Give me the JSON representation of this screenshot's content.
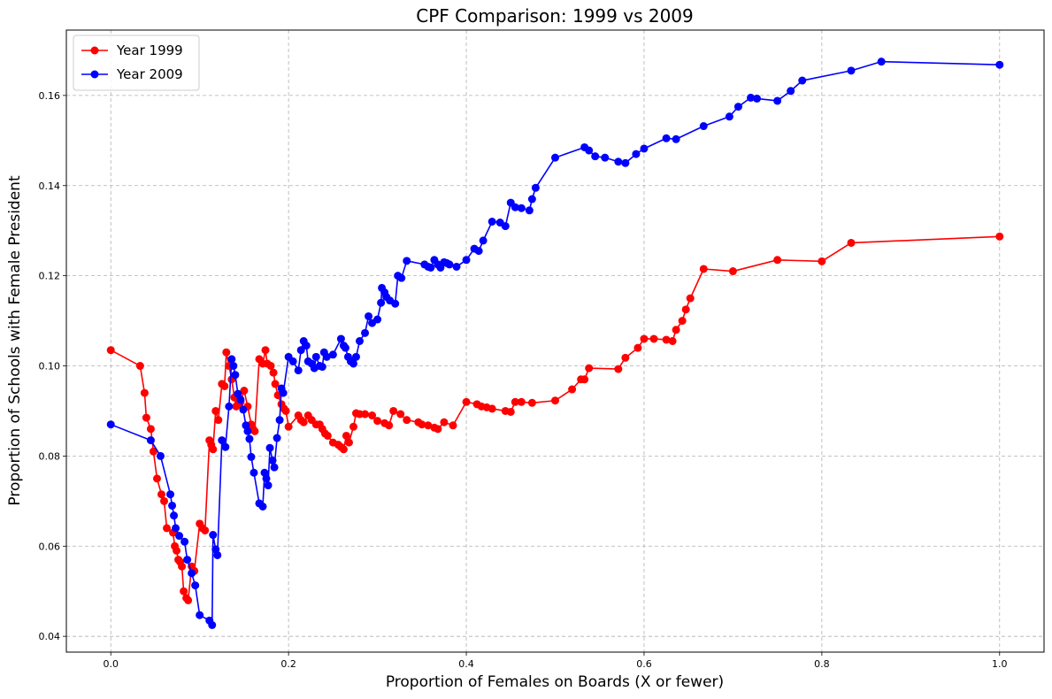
{
  "chart_data": {
    "type": "line",
    "title": "CPF Comparison: 1999 vs 2009",
    "xlabel": "Proportion of Females on Boards (X or fewer)",
    "ylabel": "Proportion of Schools with Female President",
    "xlim": [
      -0.05,
      1.05
    ],
    "ylim": [
      0.0365,
      0.1745
    ],
    "xticks": [
      0.0,
      0.2,
      0.4,
      0.6,
      0.8,
      1.0
    ],
    "xtick_labels": [
      "0.0",
      "0.2",
      "0.4",
      "0.6",
      "0.8",
      "1.0"
    ],
    "yticks": [
      0.04,
      0.06,
      0.08,
      0.1,
      0.12,
      0.14,
      0.16
    ],
    "ytick_labels": [
      "0.04",
      "0.06",
      "0.08",
      "0.10",
      "0.12",
      "0.14",
      "0.16"
    ],
    "grid": true,
    "legend_position": "top-left",
    "series": [
      {
        "name": "Year 1999",
        "color": "#ff0000",
        "marker": "circle",
        "points": [
          [
            0.0,
            0.1035
          ],
          [
            0.033,
            0.1
          ],
          [
            0.038,
            0.094
          ],
          [
            0.04,
            0.0885
          ],
          [
            0.045,
            0.086
          ],
          [
            0.048,
            0.081
          ],
          [
            0.052,
            0.075
          ],
          [
            0.057,
            0.0715
          ],
          [
            0.06,
            0.07
          ],
          [
            0.063,
            0.064
          ],
          [
            0.07,
            0.063
          ],
          [
            0.072,
            0.06
          ],
          [
            0.074,
            0.059
          ],
          [
            0.076,
            0.057
          ],
          [
            0.078,
            0.0565
          ],
          [
            0.08,
            0.0555
          ],
          [
            0.082,
            0.05
          ],
          [
            0.085,
            0.0485
          ],
          [
            0.087,
            0.048
          ],
          [
            0.091,
            0.0555
          ],
          [
            0.094,
            0.0545
          ],
          [
            0.1,
            0.065
          ],
          [
            0.103,
            0.064
          ],
          [
            0.106,
            0.0635
          ],
          [
            0.111,
            0.0835
          ],
          [
            0.113,
            0.0825
          ],
          [
            0.115,
            0.0815
          ],
          [
            0.118,
            0.09
          ],
          [
            0.121,
            0.088
          ],
          [
            0.125,
            0.096
          ],
          [
            0.128,
            0.0955
          ],
          [
            0.13,
            0.103
          ],
          [
            0.133,
            0.1
          ],
          [
            0.136,
            0.097
          ],
          [
            0.139,
            0.093
          ],
          [
            0.141,
            0.091
          ],
          [
            0.143,
            0.0915
          ],
          [
            0.146,
            0.092
          ],
          [
            0.15,
            0.0945
          ],
          [
            0.154,
            0.091
          ],
          [
            0.158,
            0.087
          ],
          [
            0.16,
            0.086
          ],
          [
            0.162,
            0.0855
          ],
          [
            0.167,
            0.1015
          ],
          [
            0.171,
            0.1005
          ],
          [
            0.174,
            0.1035
          ],
          [
            0.176,
            0.1005
          ],
          [
            0.18,
            0.1
          ],
          [
            0.183,
            0.0985
          ],
          [
            0.185,
            0.096
          ],
          [
            0.188,
            0.0935
          ],
          [
            0.192,
            0.0915
          ],
          [
            0.195,
            0.0905
          ],
          [
            0.197,
            0.09
          ],
          [
            0.2,
            0.0865
          ],
          [
            0.211,
            0.089
          ],
          [
            0.214,
            0.088
          ],
          [
            0.217,
            0.0875
          ],
          [
            0.222,
            0.089
          ],
          [
            0.226,
            0.088
          ],
          [
            0.231,
            0.087
          ],
          [
            0.235,
            0.087
          ],
          [
            0.238,
            0.086
          ],
          [
            0.241,
            0.085
          ],
          [
            0.244,
            0.0845
          ],
          [
            0.25,
            0.083
          ],
          [
            0.256,
            0.0825
          ],
          [
            0.259,
            0.082
          ],
          [
            0.262,
            0.0815
          ],
          [
            0.265,
            0.0845
          ],
          [
            0.268,
            0.083
          ],
          [
            0.273,
            0.0865
          ],
          [
            0.276,
            0.0895
          ],
          [
            0.28,
            0.0893
          ],
          [
            0.286,
            0.0893
          ],
          [
            0.294,
            0.089
          ],
          [
            0.3,
            0.0878
          ],
          [
            0.308,
            0.0873
          ],
          [
            0.313,
            0.0868
          ],
          [
            0.318,
            0.09
          ],
          [
            0.326,
            0.0893
          ],
          [
            0.333,
            0.088
          ],
          [
            0.346,
            0.0875
          ],
          [
            0.35,
            0.087
          ],
          [
            0.357,
            0.0868
          ],
          [
            0.364,
            0.0863
          ],
          [
            0.368,
            0.086
          ],
          [
            0.375,
            0.0875
          ],
          [
            0.385,
            0.0868
          ],
          [
            0.4,
            0.092
          ],
          [
            0.412,
            0.0915
          ],
          [
            0.417,
            0.091
          ],
          [
            0.423,
            0.0908
          ],
          [
            0.429,
            0.0905
          ],
          [
            0.444,
            0.09
          ],
          [
            0.45,
            0.0898
          ],
          [
            0.455,
            0.092
          ],
          [
            0.462,
            0.092
          ],
          [
            0.474,
            0.0918
          ],
          [
            0.5,
            0.0923
          ],
          [
            0.519,
            0.0948
          ],
          [
            0.529,
            0.097
          ],
          [
            0.533,
            0.097
          ],
          [
            0.538,
            0.0995
          ],
          [
            0.571,
            0.0993
          ],
          [
            0.579,
            0.1018
          ],
          [
            0.593,
            0.104
          ],
          [
            0.6,
            0.106
          ],
          [
            0.611,
            0.106
          ],
          [
            0.625,
            0.1058
          ],
          [
            0.632,
            0.1055
          ],
          [
            0.636,
            0.108
          ],
          [
            0.643,
            0.11
          ],
          [
            0.647,
            0.1125
          ],
          [
            0.652,
            0.115
          ],
          [
            0.667,
            0.1215
          ],
          [
            0.7,
            0.121
          ],
          [
            0.75,
            0.1235
          ],
          [
            0.8,
            0.1232
          ],
          [
            0.833,
            0.1273
          ],
          [
            1.0,
            0.1287
          ]
        ]
      },
      {
        "name": "Year 2009",
        "color": "#0000ff",
        "marker": "circle",
        "points": [
          [
            0.0,
            0.087
          ],
          [
            0.045,
            0.0835
          ],
          [
            0.056,
            0.08
          ],
          [
            0.067,
            0.0715
          ],
          [
            0.069,
            0.069
          ],
          [
            0.071,
            0.0668
          ],
          [
            0.073,
            0.064
          ],
          [
            0.077,
            0.0623
          ],
          [
            0.083,
            0.061
          ],
          [
            0.086,
            0.057
          ],
          [
            0.091,
            0.054
          ],
          [
            0.095,
            0.0513
          ],
          [
            0.1,
            0.0447
          ],
          [
            0.111,
            0.0435
          ],
          [
            0.114,
            0.0425
          ],
          [
            0.115,
            0.0625
          ],
          [
            0.118,
            0.0593
          ],
          [
            0.12,
            0.058
          ],
          [
            0.125,
            0.0835
          ],
          [
            0.129,
            0.082
          ],
          [
            0.133,
            0.091
          ],
          [
            0.136,
            0.1015
          ],
          [
            0.138,
            0.1
          ],
          [
            0.14,
            0.098
          ],
          [
            0.143,
            0.0938
          ],
          [
            0.146,
            0.0925
          ],
          [
            0.149,
            0.0903
          ],
          [
            0.152,
            0.0868
          ],
          [
            0.154,
            0.0855
          ],
          [
            0.156,
            0.0838
          ],
          [
            0.158,
            0.0798
          ],
          [
            0.161,
            0.0763
          ],
          [
            0.167,
            0.0695
          ],
          [
            0.171,
            0.0688
          ],
          [
            0.173,
            0.0763
          ],
          [
            0.175,
            0.075
          ],
          [
            0.177,
            0.0735
          ],
          [
            0.179,
            0.0818
          ],
          [
            0.182,
            0.079
          ],
          [
            0.184,
            0.0775
          ],
          [
            0.187,
            0.084
          ],
          [
            0.19,
            0.088
          ],
          [
            0.192,
            0.095
          ],
          [
            0.194,
            0.094
          ],
          [
            0.2,
            0.102
          ],
          [
            0.205,
            0.101
          ],
          [
            0.211,
            0.099
          ],
          [
            0.214,
            0.1035
          ],
          [
            0.217,
            0.1055
          ],
          [
            0.22,
            0.1045
          ],
          [
            0.222,
            0.101
          ],
          [
            0.226,
            0.1005
          ],
          [
            0.229,
            0.0995
          ],
          [
            0.231,
            0.102
          ],
          [
            0.235,
            0.1
          ],
          [
            0.238,
            0.0998
          ],
          [
            0.24,
            0.103
          ],
          [
            0.243,
            0.102
          ],
          [
            0.25,
            0.1025
          ],
          [
            0.259,
            0.106
          ],
          [
            0.262,
            0.1045
          ],
          [
            0.264,
            0.104
          ],
          [
            0.267,
            0.102
          ],
          [
            0.27,
            0.101
          ],
          [
            0.273,
            0.1005
          ],
          [
            0.276,
            0.102
          ],
          [
            0.28,
            0.1055
          ],
          [
            0.286,
            0.1073
          ],
          [
            0.29,
            0.111
          ],
          [
            0.294,
            0.1095
          ],
          [
            0.3,
            0.1103
          ],
          [
            0.304,
            0.114
          ],
          [
            0.305,
            0.1173
          ],
          [
            0.308,
            0.1163
          ],
          [
            0.31,
            0.1153
          ],
          [
            0.314,
            0.1145
          ],
          [
            0.32,
            0.1138
          ],
          [
            0.323,
            0.12
          ],
          [
            0.327,
            0.1195
          ],
          [
            0.333,
            0.1233
          ],
          [
            0.353,
            0.1225
          ],
          [
            0.357,
            0.122
          ],
          [
            0.36,
            0.1218
          ],
          [
            0.364,
            0.1235
          ],
          [
            0.368,
            0.1225
          ],
          [
            0.371,
            0.1218
          ],
          [
            0.375,
            0.123
          ],
          [
            0.378,
            0.1228
          ],
          [
            0.381,
            0.1225
          ],
          [
            0.389,
            0.122
          ],
          [
            0.4,
            0.1235
          ],
          [
            0.409,
            0.126
          ],
          [
            0.414,
            0.1255
          ],
          [
            0.419,
            0.1278
          ],
          [
            0.429,
            0.132
          ],
          [
            0.438,
            0.1318
          ],
          [
            0.444,
            0.131
          ],
          [
            0.45,
            0.1362
          ],
          [
            0.455,
            0.1352
          ],
          [
            0.462,
            0.135
          ],
          [
            0.471,
            0.1345
          ],
          [
            0.474,
            0.137
          ],
          [
            0.478,
            0.1395
          ],
          [
            0.5,
            0.1462
          ],
          [
            0.533,
            0.1485
          ],
          [
            0.538,
            0.1478
          ],
          [
            0.545,
            0.1465
          ],
          [
            0.556,
            0.1462
          ],
          [
            0.571,
            0.1453
          ],
          [
            0.579,
            0.145
          ],
          [
            0.591,
            0.147
          ],
          [
            0.6,
            0.1482
          ],
          [
            0.625,
            0.1505
          ],
          [
            0.636,
            0.1503
          ],
          [
            0.667,
            0.1532
          ],
          [
            0.696,
            0.1553
          ],
          [
            0.706,
            0.1575
          ],
          [
            0.72,
            0.1595
          ],
          [
            0.727,
            0.1593
          ],
          [
            0.75,
            0.1588
          ],
          [
            0.765,
            0.161
          ],
          [
            0.778,
            0.1633
          ],
          [
            0.833,
            0.1655
          ],
          [
            0.867,
            0.1675
          ],
          [
            1.0,
            0.1668
          ]
        ]
      }
    ]
  }
}
